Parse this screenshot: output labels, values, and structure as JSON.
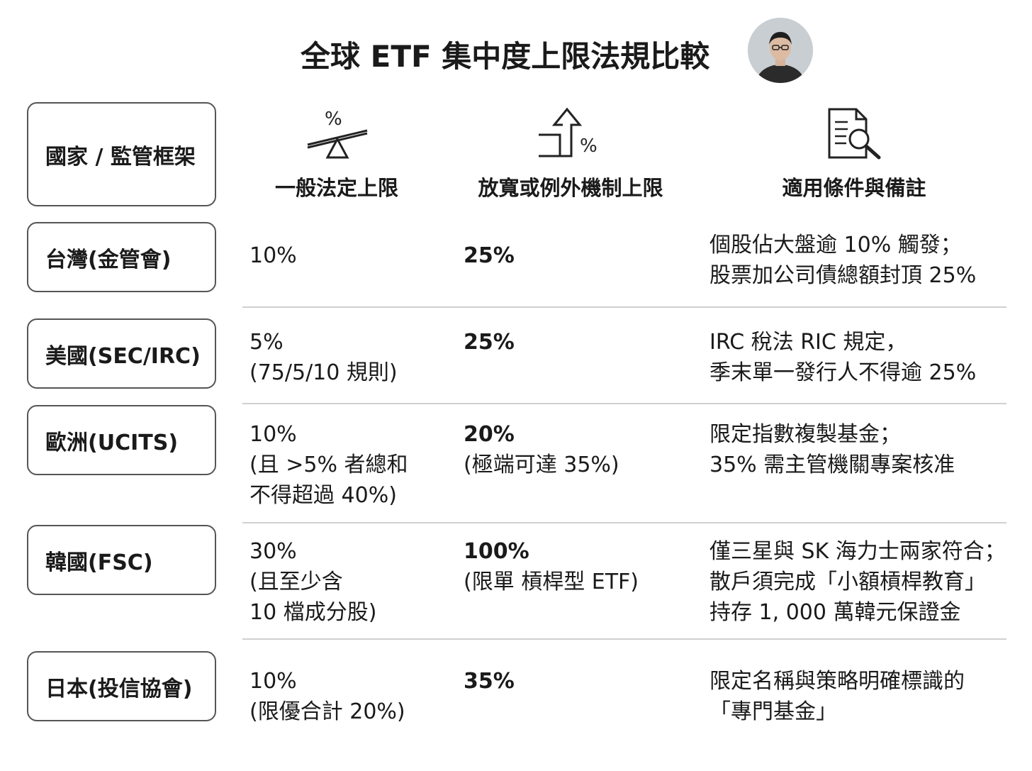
{
  "title": "全球 ETF 集中度上限法規比較",
  "header": {
    "label": "國家 / 監管框架",
    "columns": [
      {
        "label": "一般法定上限",
        "icon": "scale-percent-icon"
      },
      {
        "label": "放寬或例外機制上限",
        "icon": "arrow-up-percent-icon"
      },
      {
        "label": "適用條件與備註",
        "icon": "document-search-icon"
      }
    ]
  },
  "rows": [
    {
      "country": "台灣(金管會)",
      "general": [
        "10%"
      ],
      "relaxed": [
        "25%"
      ],
      "notes": [
        "個股佔大盤逾 10% 觸發；",
        "股票加公司債總額封頂 25%"
      ]
    },
    {
      "country": "美國(SEC/IRC)",
      "general": [
        "5%",
        "(75/5/10 規則)"
      ],
      "relaxed": [
        "25%"
      ],
      "notes": [
        "IRC 稅法 RIC 規定，",
        "季末單一發行人不得逾 25%"
      ]
    },
    {
      "country": "歐洲(UCITS)",
      "general": [
        "10%",
        "(且 >5% 者總和",
        "不得超過 40%)"
      ],
      "relaxed": [
        "20%",
        "(極端可達 35%)"
      ],
      "notes": [
        "限定指數複製基金；",
        "35% 需主管機關專案核准"
      ]
    },
    {
      "country": "韓國(FSC)",
      "general": [
        "30%",
        "(且至少含",
        "10 檔成分股)"
      ],
      "relaxed": [
        "100%",
        "(限單 槓桿型 ETF)"
      ],
      "notes": [
        "僅三星與 SK 海力士兩家符合；",
        "散戶須完成「小額槓桿教育」",
        "持存 1, 000 萬韓元保證金"
      ]
    },
    {
      "country": "日本(投信協會)",
      "general": [
        "10%",
        "(限優合計 20%)"
      ],
      "relaxed": [
        "35%"
      ],
      "notes": [
        "限定名稱與策略明確標識的",
        "「專門基金」"
      ]
    }
  ],
  "colors": {
    "text": "#1a1a1a",
    "border": "#555555",
    "divider": "#d0d0d0"
  }
}
